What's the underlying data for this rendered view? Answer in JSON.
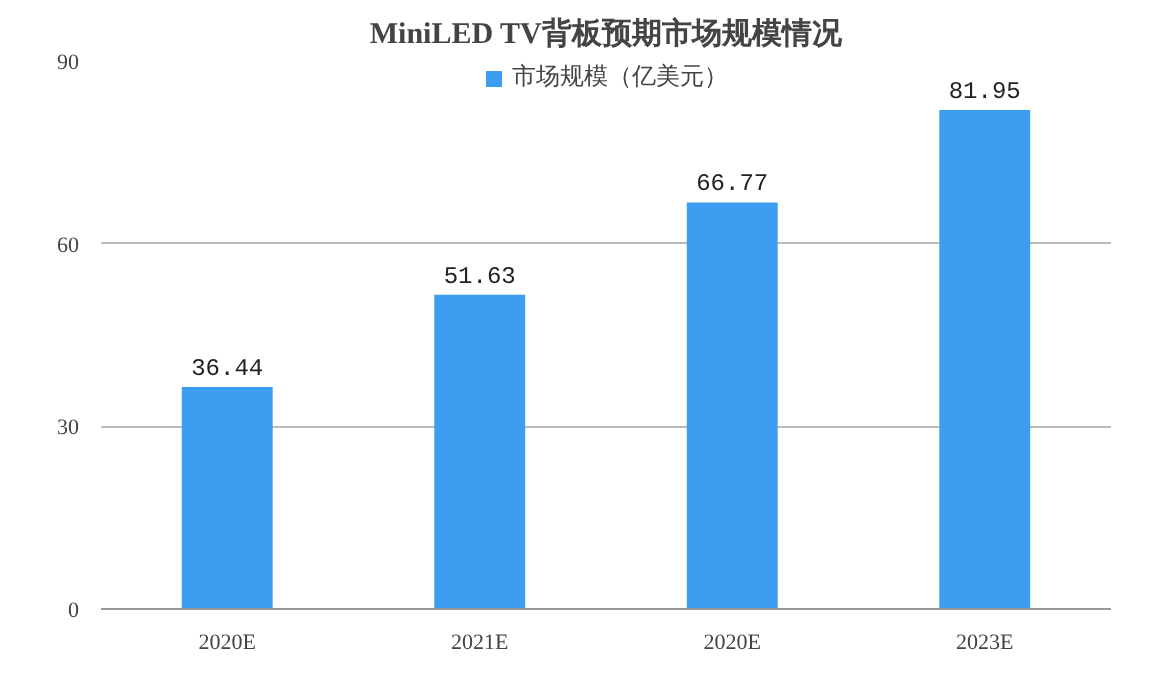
{
  "chart_data": {
    "type": "bar",
    "title": "MiniLED TV背板预期市场规模情况",
    "categories": [
      "2020E",
      "2021E",
      "2020E",
      "2023E"
    ],
    "series": [
      {
        "name": "市场规模（亿美元）",
        "color": "#3d9df0",
        "values": [
          36.44,
          51.63,
          66.77,
          81.95
        ]
      }
    ],
    "ylim": [
      0,
      90
    ],
    "yticks": [
      0,
      30,
      60,
      90
    ],
    "grid": "y",
    "legend": "top",
    "data_labels": true
  }
}
